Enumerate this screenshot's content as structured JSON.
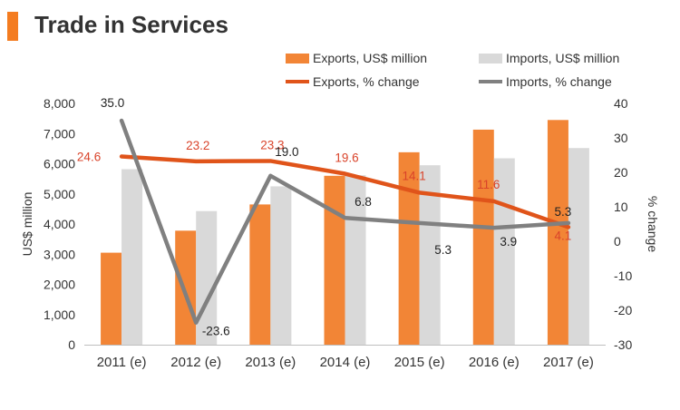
{
  "chart_data": {
    "type": "bar+line",
    "title": "Trade in Services",
    "categories": [
      "2011 (e)",
      "2012 (e)",
      "2013 (e)",
      "2014 (e)",
      "2015 (e)",
      "2016 (e)",
      "2017 (e)"
    ],
    "bar_series": [
      {
        "name": "Exports, US$ million",
        "color": "#f28536",
        "values": [
          3050,
          3780,
          4650,
          5600,
          6380,
          7130,
          7450
        ]
      },
      {
        "name": "Imports, US$ million",
        "color": "#d9d9d9",
        "values": [
          5820,
          4430,
          5250,
          5620,
          5950,
          6180,
          6520
        ]
      }
    ],
    "line_series": [
      {
        "name": "Exports, % change",
        "color": "#e0541a",
        "values": [
          24.6,
          23.2,
          23.3,
          19.6,
          14.1,
          11.6,
          4.1
        ],
        "labels": [
          "24.6",
          "23.2",
          "23.3",
          "19.6",
          "14.1",
          "11.6",
          "4.1"
        ],
        "label_color": "#d9432a"
      },
      {
        "name": "Imports, % change",
        "color": "#808080",
        "values": [
          35.0,
          -23.6,
          19.0,
          6.8,
          5.3,
          3.9,
          5.3
        ],
        "labels": [
          "35.0",
          "-23.6",
          "19.0",
          "6.8",
          "5.3",
          "3.9",
          "5.3"
        ],
        "label_color": "#222222"
      }
    ],
    "y_left": {
      "label": "US$ million",
      "min": 0,
      "max": 8000,
      "ticks": [
        "0",
        "1,000",
        "2,000",
        "3,000",
        "4,000",
        "5,000",
        "6,000",
        "7,000",
        "8,000"
      ]
    },
    "y_right": {
      "label": "% change",
      "min": -30,
      "max": 40,
      "ticks": [
        "-30",
        "-20",
        "-10",
        "0",
        "10",
        "20",
        "30",
        "40"
      ]
    }
  }
}
